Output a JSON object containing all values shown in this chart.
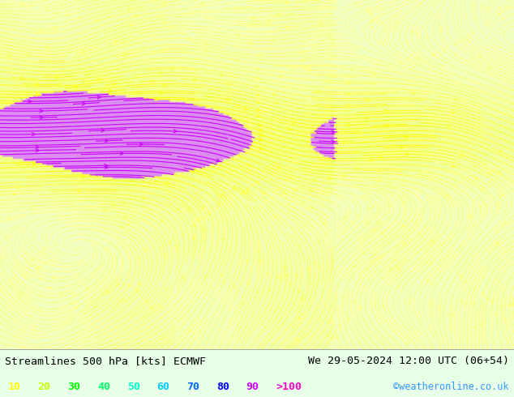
{
  "title_left": "Streamlines 500 hPa [kts] ECMWF",
  "title_right": "We 29-05-2024 12:00 UTC (06+54)",
  "credit": "©weatheronline.co.uk",
  "legend_values": [
    "10",
    "20",
    "30",
    "40",
    "50",
    "60",
    "70",
    "80",
    "90",
    ">100"
  ],
  "legend_colors": [
    "#ffff00",
    "#ccff00",
    "#00ff00",
    "#00ff66",
    "#00ffcc",
    "#00ccff",
    "#0066ff",
    "#0000ff",
    "#cc00ff",
    "#ff00cc"
  ],
  "bg_color": "#e8ffe8",
  "figsize": [
    6.34,
    4.9
  ],
  "dpi": 100,
  "speed_colors": [
    [
      0,
      "#ffff99"
    ],
    [
      10,
      "#ffff00"
    ],
    [
      20,
      "#ccff00"
    ],
    [
      30,
      "#00ff00"
    ],
    [
      40,
      "#00ff88"
    ],
    [
      50,
      "#00ffff"
    ],
    [
      60,
      "#00aaff"
    ],
    [
      70,
      "#0044ff"
    ],
    [
      80,
      "#0000cc"
    ],
    [
      90,
      "#8800cc"
    ],
    [
      100,
      "#cc00ff"
    ]
  ]
}
